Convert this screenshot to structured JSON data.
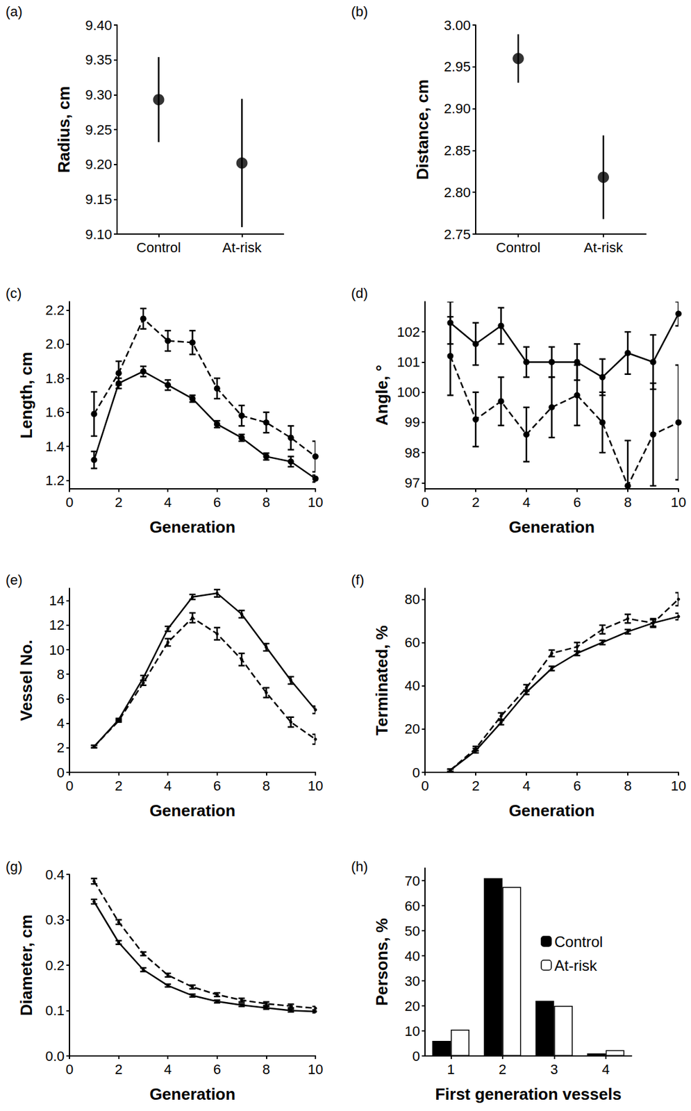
{
  "chart_data": [
    {
      "type": "scatter",
      "title": "(a)",
      "ylabel": "Radius, cm",
      "categories": [
        "Control",
        "At-risk"
      ],
      "ylim": [
        9.1,
        9.4
      ],
      "yticks": [
        {
          "value": 9.1,
          "label": "9.10"
        },
        9.15,
        {
          "value": 9.2,
          "label": "9.20"
        },
        9.25,
        {
          "value": 9.3,
          "label": "9.30"
        },
        9.35,
        {
          "value": 9.4,
          "label": "9.40"
        }
      ],
      "grid": false,
      "series": [
        {
          "color": "#000000",
          "marker": "circle",
          "values": [
            9.293,
            9.202
          ],
          "errors": [
            0.061,
            0.092
          ]
        }
      ]
    },
    {
      "type": "scatter",
      "title": "(b)",
      "ylabel": "Distance, cm",
      "categories": [
        "Control",
        "At-risk"
      ],
      "ylim": [
        2.75,
        3.0
      ],
      "yticks": [
        2.75,
        {
          "value": 2.8,
          "label": "2.80"
        },
        2.85,
        {
          "value": 2.9,
          "label": "2.90"
        },
        2.95,
        {
          "value": 3,
          "label": "3.00"
        }
      ],
      "grid": false,
      "series": [
        {
          "color": "#000000",
          "marker": "circle",
          "values": [
            2.96,
            2.818
          ],
          "errors": [
            0.029,
            0.05
          ]
        }
      ]
    },
    {
      "type": "line",
      "title": "(c)",
      "xlabel": "Generation",
      "ylabel": "Length, cm",
      "x": [
        1,
        2,
        3,
        4,
        5,
        6,
        7,
        8,
        9,
        10
      ],
      "xlim": [
        0,
        10
      ],
      "xticks": [
        0,
        2,
        4,
        6,
        8,
        10
      ],
      "ylim": [
        1.15,
        2.25
      ],
      "yticks": [
        1.2,
        1.4,
        1.6,
        1.8,
        {
          "value": 2,
          "label": "2.0"
        },
        2.2
      ],
      "grid": false,
      "series": [
        {
          "color": "#000000",
          "line_style": "solid",
          "marker": "circle",
          "values": [
            1.32,
            1.77,
            1.84,
            1.76,
            1.68,
            1.53,
            1.45,
            1.34,
            1.31,
            1.21
          ],
          "errors": [
            0.05,
            0.03,
            0.03,
            0.03,
            0.02,
            0.02,
            0.02,
            0.02,
            0.03,
            0.02
          ]
        },
        {
          "color": "#000000",
          "line_style": "dashed",
          "marker": "circle",
          "values": [
            1.59,
            1.83,
            2.15,
            2.02,
            2.01,
            1.74,
            1.58,
            1.54,
            1.45,
            1.34
          ],
          "errors": [
            0.13,
            0.07,
            0.06,
            0.06,
            0.07,
            0.06,
            0.06,
            0.06,
            0.07,
            0.09
          ]
        }
      ]
    },
    {
      "type": "line",
      "title": "(d)",
      "xlabel": "Generation",
      "ylabel": "Angle, °",
      "x": [
        1,
        2,
        3,
        4,
        5,
        6,
        7,
        8,
        9,
        10
      ],
      "xlim": [
        0,
        10
      ],
      "xticks": [
        0,
        2,
        4,
        6,
        8,
        10
      ],
      "ylim": [
        96.8,
        103
      ],
      "yticks": [
        97,
        98,
        99,
        100,
        101,
        102
      ],
      "grid": false,
      "series": [
        {
          "color": "#000000",
          "line_style": "solid",
          "marker": "circle",
          "values": [
            102.3,
            101.6,
            102.2,
            101.0,
            101.0,
            101.0,
            100.5,
            101.3,
            101.0,
            102.6
          ],
          "errors": [
            0.7,
            0.7,
            0.6,
            0.5,
            0.5,
            0.6,
            0.6,
            0.7,
            0.9,
            0.4
          ]
        },
        {
          "color": "#000000",
          "line_style": "dashed",
          "marker": "circle",
          "values": [
            101.2,
            99.1,
            99.7,
            98.6,
            99.5,
            99.9,
            99.0,
            96.9,
            98.6,
            99.0
          ],
          "errors": [
            1.3,
            0.9,
            0.8,
            0.9,
            1.0,
            1.0,
            1.0,
            1.5,
            1.7,
            1.9
          ]
        }
      ]
    },
    {
      "type": "line",
      "title": "(e)",
      "xlabel": "Generation",
      "ylabel": "Vessel No.",
      "x": [
        1,
        2,
        3,
        4,
        5,
        6,
        7,
        8,
        9,
        10
      ],
      "xlim": [
        0,
        10
      ],
      "xticks": [
        0,
        2,
        4,
        6,
        8,
        10
      ],
      "ylim": [
        0,
        15
      ],
      "yticks": [
        0,
        2,
        4,
        6,
        8,
        10,
        12,
        14
      ],
      "grid": false,
      "series": [
        {
          "color": "#000000",
          "line_style": "solid",
          "marker": "dot",
          "values": [
            2.1,
            4.3,
            7.7,
            11.7,
            14.3,
            14.6,
            12.9,
            10.2,
            7.5,
            5.1
          ],
          "errors": [
            0.1,
            0.1,
            0.2,
            0.2,
            0.2,
            0.3,
            0.3,
            0.3,
            0.3,
            0.3
          ]
        },
        {
          "color": "#000000",
          "line_style": "dashed",
          "marker": "dot",
          "values": [
            2.1,
            4.2,
            7.3,
            10.6,
            12.6,
            11.3,
            9.2,
            6.5,
            4.1,
            2.7
          ],
          "errors": [
            0.1,
            0.1,
            0.2,
            0.3,
            0.4,
            0.5,
            0.5,
            0.4,
            0.4,
            0.4
          ]
        }
      ]
    },
    {
      "type": "line",
      "title": "(f)",
      "xlabel": "Generation",
      "ylabel": "Terminated, %",
      "x": [
        1,
        2,
        3,
        4,
        5,
        6,
        7,
        8,
        9,
        10
      ],
      "xlim": [
        0,
        10
      ],
      "xticks": [
        0,
        2,
        4,
        6,
        8,
        10
      ],
      "ylim": [
        0,
        85
      ],
      "yticks": [
        0,
        20,
        40,
        60,
        80
      ],
      "grid": false,
      "series": [
        {
          "color": "#000000",
          "line_style": "solid",
          "marker": "dot",
          "values": [
            1,
            10,
            23,
            37,
            48,
            55,
            60,
            65,
            69,
            72
          ],
          "errors": [
            0.5,
            1,
            1,
            1,
            1,
            1,
            1,
            1,
            1.5,
            1.5
          ]
        },
        {
          "color": "#000000",
          "line_style": "dashed",
          "marker": "dot",
          "values": [
            1,
            11,
            26,
            39,
            55,
            58,
            66,
            71,
            69,
            80
          ],
          "errors": [
            0.5,
            1,
            1.5,
            1.5,
            1.5,
            2,
            2,
            2,
            2,
            3
          ]
        }
      ]
    },
    {
      "type": "line",
      "title": "(g)",
      "xlabel": "Generation",
      "ylabel": "Diameter, cm",
      "x": [
        1,
        2,
        3,
        4,
        5,
        6,
        7,
        8,
        9,
        10
      ],
      "xlim": [
        0,
        10
      ],
      "xticks": [
        0,
        2,
        4,
        6,
        8,
        10
      ],
      "ylim": [
        0,
        0.4
      ],
      "yticks": [
        {
          "value": 0,
          "label": "0.0"
        },
        0.1,
        0.2,
        0.3,
        0.4
      ],
      "grid": false,
      "series": [
        {
          "color": "#000000",
          "line_style": "solid",
          "marker": "dot",
          "values": [
            0.34,
            0.25,
            0.19,
            0.155,
            0.133,
            0.12,
            0.112,
            0.106,
            0.1,
            0.098
          ],
          "errors": [
            0.005,
            0.004,
            0.004,
            0.003,
            0.003,
            0.003,
            0.003,
            0.003,
            0.003,
            0.003
          ]
        },
        {
          "color": "#000000",
          "line_style": "dashed",
          "marker": "dot",
          "values": [
            0.385,
            0.295,
            0.225,
            0.178,
            0.152,
            0.135,
            0.123,
            0.115,
            0.11,
            0.105
          ],
          "errors": [
            0.006,
            0.005,
            0.004,
            0.004,
            0.004,
            0.004,
            0.004,
            0.004,
            0.004,
            0.004
          ]
        }
      ]
    },
    {
      "type": "bar",
      "title": "(h)",
      "xlabel": "First generation vessels",
      "ylabel": "Persons, %",
      "categories": [
        "1",
        "2",
        "3",
        "4"
      ],
      "ylim": [
        0,
        75
      ],
      "yticks": [
        0,
        10,
        20,
        30,
        40,
        50,
        60,
        70
      ],
      "grid": false,
      "legend": "upper right",
      "series": [
        {
          "name": "Control",
          "color": "#000000",
          "values": [
            6,
            71,
            22,
            1
          ]
        },
        {
          "name": "At-risk",
          "color": "#ffffff",
          "values": [
            10.5,
            67.5,
            20,
            2.3
          ]
        }
      ]
    }
  ]
}
